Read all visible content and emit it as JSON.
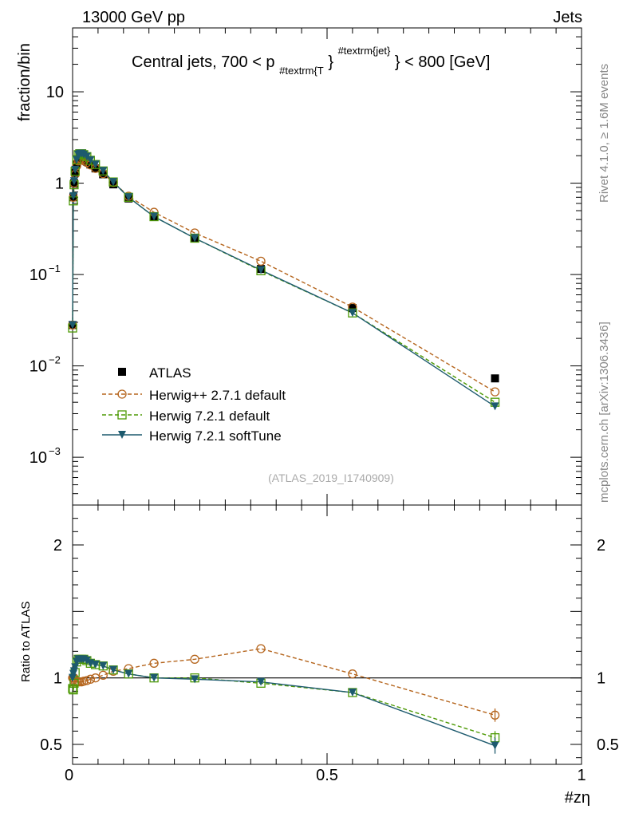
{
  "header": {
    "energy_label": "13000 GeV pp",
    "process_label": "Jets"
  },
  "side": {
    "rivet_label": "Rivet 4.1.0, ≥ 1.6M events",
    "source_label": "mcplots.cern.ch [arXiv:1306.3436]"
  },
  "watermark": "(ATLAS_2019_I1740909)",
  "colors": {
    "atlas": "#000000",
    "herwigpp": "#b5651d",
    "herwig721": "#4e9a06",
    "softtune": "#1d5a6e"
  },
  "chart_data": [
    {
      "type": "line",
      "title": {
        "prefix": "Central jets, 700 < p",
        "subscript": "#textrm{T",
        "brace": "}",
        "superscript": "#textrm{jet}",
        "suffix": "} < 800 [GeV]"
      },
      "xlabel": "#zη",
      "ylabel": "fraction/bin",
      "yscale": "log",
      "xlim": [
        0,
        1
      ],
      "ylim": [
        0.0003,
        50
      ],
      "yticks": [
        {
          "value": 10,
          "label": "10"
        },
        {
          "value": 1,
          "label": "1"
        },
        {
          "value": 0.1,
          "base": "10",
          "exp": "−1"
        },
        {
          "value": 0.01,
          "base": "10",
          "exp": "−2"
        },
        {
          "value": 0.001,
          "base": "10",
          "exp": "−3"
        }
      ],
      "legend": {
        "position": "left-lower",
        "entries": [
          "ATLAS",
          "Herwig++ 2.7.1 default",
          "Herwig 7.2.1 default",
          "Herwig 7.2.1 softTune"
        ]
      },
      "x": [
        0.0,
        0.0015,
        0.003,
        0.005,
        0.008,
        0.011,
        0.014,
        0.018,
        0.022,
        0.028,
        0.035,
        0.045,
        0.06,
        0.08,
        0.11,
        0.16,
        0.24,
        0.37,
        0.55,
        0.83
      ],
      "series": [
        {
          "name": "ATLAS",
          "key": "atlas",
          "marker": "square-filled",
          "line": "none",
          "values": [
            0.028,
            0.7,
            1.0,
            1.3,
            1.6,
            1.8,
            1.85,
            1.85,
            1.8,
            1.72,
            1.6,
            1.45,
            1.25,
            0.97,
            0.68,
            0.43,
            0.25,
            0.115,
            0.043,
            0.0073
          ]
        },
        {
          "name": "Herwig++ 2.7.1 default",
          "key": "herwigpp",
          "marker": "circle-open",
          "line": "dashed",
          "values": [
            0.028,
            0.7,
            1.0,
            1.25,
            1.55,
            1.75,
            1.8,
            1.8,
            1.76,
            1.68,
            1.58,
            1.45,
            1.27,
            1.02,
            0.72,
            0.48,
            0.285,
            0.14,
            0.044,
            0.0052
          ]
        },
        {
          "name": "Herwig 7.2.1 default",
          "key": "herwig721",
          "marker": "square-open",
          "line": "dashed",
          "values": [
            0.026,
            0.64,
            0.96,
            1.35,
            1.8,
            2.05,
            2.1,
            2.1,
            2.05,
            1.95,
            1.78,
            1.6,
            1.36,
            1.03,
            0.7,
            0.43,
            0.25,
            0.11,
            0.038,
            0.004
          ]
        },
        {
          "name": "Herwig 7.2.1 softTune",
          "key": "softtune",
          "marker": "triangle-down-filled",
          "line": "solid",
          "values": [
            0.028,
            0.72,
            1.05,
            1.4,
            1.8,
            2.05,
            2.1,
            2.1,
            2.05,
            1.95,
            1.78,
            1.6,
            1.36,
            1.03,
            0.7,
            0.43,
            0.25,
            0.112,
            0.038,
            0.0036
          ]
        }
      ]
    },
    {
      "type": "line",
      "ylabel": "Ratio to ATLAS",
      "xlabel": "#zη",
      "xlim": [
        0,
        1
      ],
      "ylim": [
        0.35,
        2.3
      ],
      "yticks": [
        0.5,
        1,
        2
      ],
      "xticks": [
        0,
        0.5,
        1
      ],
      "reference_line": 1,
      "x": [
        0.0,
        0.0015,
        0.003,
        0.005,
        0.008,
        0.011,
        0.014,
        0.018,
        0.022,
        0.028,
        0.035,
        0.045,
        0.06,
        0.08,
        0.11,
        0.16,
        0.24,
        0.37,
        0.55,
        0.83
      ],
      "series": [
        {
          "name": "Herwig++ 2.7.1 default",
          "key": "herwigpp",
          "marker": "circle-open",
          "line": "dashed",
          "values": [
            1.0,
            1.0,
            1.0,
            0.96,
            0.97,
            0.97,
            0.97,
            0.97,
            0.975,
            0.98,
            0.99,
            1.0,
            1.02,
            1.05,
            1.07,
            1.11,
            1.14,
            1.22,
            1.03,
            0.72
          ],
          "errors": [
            0,
            0,
            0,
            0,
            0,
            0,
            0,
            0,
            0,
            0,
            0,
            0,
            0,
            0,
            0,
            0,
            0,
            0,
            0,
            0.05
          ]
        },
        {
          "name": "Herwig 7.2.1 default",
          "key": "herwig721",
          "marker": "square-open",
          "line": "dashed",
          "values": [
            0.92,
            0.91,
            0.96,
            1.04,
            1.12,
            1.14,
            1.14,
            1.14,
            1.14,
            1.13,
            1.11,
            1.1,
            1.09,
            1.06,
            1.03,
            1.0,
            1.0,
            0.96,
            0.89,
            0.55
          ],
          "errors": [
            0,
            0,
            0,
            0,
            0,
            0,
            0,
            0,
            0,
            0,
            0,
            0,
            0,
            0,
            0,
            0,
            0,
            0,
            0,
            0.05
          ]
        },
        {
          "name": "Herwig 7.2.1 softTune",
          "key": "softtune",
          "marker": "triangle-down-filled",
          "line": "solid",
          "values": [
            1.0,
            1.03,
            1.05,
            1.08,
            1.12,
            1.14,
            1.14,
            1.14,
            1.14,
            1.13,
            1.11,
            1.1,
            1.09,
            1.06,
            1.03,
            1.0,
            0.99,
            0.97,
            0.89,
            0.49
          ],
          "errors": [
            0,
            0,
            0,
            0,
            0,
            0,
            0,
            0,
            0,
            0,
            0,
            0,
            0,
            0,
            0,
            0,
            0,
            0,
            0,
            0.06
          ]
        }
      ]
    }
  ]
}
